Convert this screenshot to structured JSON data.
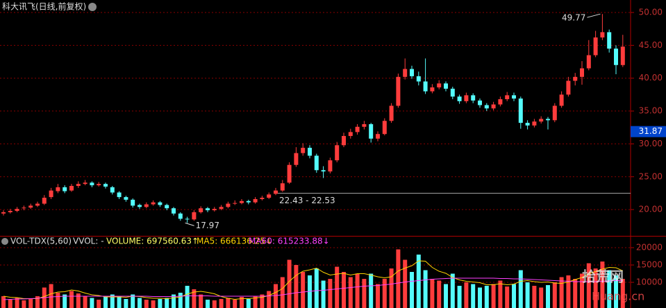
{
  "chart_data": [
    {
      "type": "candlestick",
      "title": "科大讯飞(日线,前复权)",
      "up_color": "#ff3c3c",
      "down_color": "#54fcfc",
      "grid": true,
      "ylim": [
        16.0,
        51.9
      ],
      "yticks": [
        {
          "value": 20,
          "label": "20.00"
        },
        {
          "value": 25,
          "label": "25.00"
        },
        {
          "value": 30,
          "label": "30.00"
        },
        {
          "value": 35,
          "label": "35.00"
        },
        {
          "value": 40,
          "label": "40.00"
        },
        {
          "value": 45,
          "label": "45.00"
        },
        {
          "value": 50,
          "label": "50.00"
        }
      ],
      "ohlc": [
        [
          19.4,
          19.9,
          19.1,
          19.6
        ],
        [
          19.6,
          20.1,
          19.4,
          19.8
        ],
        [
          19.8,
          20.4,
          19.6,
          20.1
        ],
        [
          20.2,
          20.6,
          19.9,
          20.3
        ],
        [
          20.3,
          20.9,
          20.1,
          20.6
        ],
        [
          20.6,
          21.2,
          20.4,
          20.9
        ],
        [
          20.9,
          22.2,
          20.7,
          21.8
        ],
        [
          21.9,
          23.3,
          21.6,
          22.9
        ],
        [
          22.8,
          23.9,
          22.5,
          23.4
        ],
        [
          23.4,
          23.7,
          22.5,
          22.8
        ],
        [
          22.9,
          23.9,
          22.7,
          23.6
        ],
        [
          23.6,
          24.3,
          23.3,
          23.9
        ],
        [
          23.9,
          24.5,
          23.7,
          24.1
        ],
        [
          24.1,
          24.3,
          23.4,
          23.7
        ],
        [
          23.7,
          24.2,
          23.5,
          23.9
        ],
        [
          23.9,
          24.1,
          23.2,
          23.5
        ],
        [
          23.4,
          23.6,
          22.3,
          22.6
        ],
        [
          22.6,
          22.8,
          21.6,
          21.9
        ],
        [
          21.9,
          22.1,
          21.2,
          21.5
        ],
        [
          21.5,
          21.7,
          20.3,
          20.6
        ],
        [
          20.7,
          20.9,
          20.1,
          20.4
        ],
        [
          20.4,
          21.1,
          20.2,
          20.8
        ],
        [
          20.8,
          21.4,
          20.6,
          21.1
        ],
        [
          21.1,
          21.3,
          20.4,
          20.7
        ],
        [
          20.7,
          20.9,
          19.9,
          20.2
        ],
        [
          20.2,
          20.4,
          19.1,
          19.4
        ],
        [
          19.4,
          19.6,
          18.3,
          18.6
        ],
        [
          18.6,
          18.9,
          17.97,
          18.5
        ],
        [
          18.5,
          19.9,
          18.3,
          19.6
        ],
        [
          19.6,
          20.5,
          19.4,
          20.2
        ],
        [
          20.2,
          20.4,
          19.6,
          19.9
        ],
        [
          19.9,
          20.4,
          19.7,
          20.1
        ],
        [
          20.1,
          20.7,
          19.9,
          20.4
        ],
        [
          20.4,
          21.2,
          20.2,
          20.9
        ],
        [
          20.9,
          21.4,
          20.7,
          21.0
        ],
        [
          21.0,
          21.6,
          20.8,
          21.3
        ],
        [
          21.3,
          21.5,
          20.8,
          21.1
        ],
        [
          21.1,
          21.9,
          20.9,
          21.6
        ],
        [
          21.6,
          22.1,
          21.4,
          21.8
        ],
        [
          21.8,
          22.6,
          21.6,
          22.3
        ],
        [
          22.4,
          23.3,
          22.2,
          22.9
        ],
        [
          22.9,
          24.5,
          22.7,
          24.0
        ],
        [
          24.1,
          27.2,
          23.9,
          26.8
        ],
        [
          26.8,
          29.5,
          26.5,
          28.6
        ],
        [
          28.6,
          30.1,
          28.2,
          29.4
        ],
        [
          29.4,
          29.8,
          27.8,
          28.2
        ],
        [
          28.2,
          28.5,
          25.6,
          26.0
        ],
        [
          26.0,
          26.6,
          24.8,
          25.8
        ],
        [
          25.8,
          27.9,
          25.5,
          27.5
        ],
        [
          27.5,
          30.3,
          27.2,
          29.8
        ],
        [
          29.8,
          31.7,
          29.5,
          31.2
        ],
        [
          31.2,
          32.3,
          30.8,
          31.8
        ],
        [
          31.8,
          33.0,
          31.4,
          32.6
        ],
        [
          32.6,
          33.5,
          32.2,
          33.0
        ],
        [
          33.0,
          33.2,
          30.2,
          30.8
        ],
        [
          30.8,
          31.9,
          30.4,
          31.5
        ],
        [
          31.5,
          33.9,
          31.3,
          33.5
        ],
        [
          33.5,
          36.2,
          33.2,
          35.8
        ],
        [
          35.8,
          40.7,
          35.5,
          40.2
        ],
        [
          40.2,
          43.0,
          39.8,
          41.4
        ],
        [
          41.4,
          41.9,
          39.9,
          40.3
        ],
        [
          40.3,
          41.0,
          38.9,
          39.5
        ],
        [
          39.5,
          43.0,
          37.6,
          38.0
        ],
        [
          38.0,
          39.1,
          37.7,
          38.6
        ],
        [
          38.6,
          39.7,
          38.3,
          39.2
        ],
        [
          39.2,
          39.5,
          38.0,
          38.4
        ],
        [
          38.4,
          38.7,
          36.8,
          37.2
        ],
        [
          37.2,
          37.5,
          36.1,
          36.5
        ],
        [
          36.5,
          37.8,
          36.2,
          37.4
        ],
        [
          37.4,
          37.7,
          36.2,
          36.6
        ],
        [
          36.6,
          36.9,
          35.5,
          35.9
        ],
        [
          35.9,
          36.2,
          35.0,
          35.4
        ],
        [
          35.4,
          36.4,
          35.1,
          36.0
        ],
        [
          36.0,
          37.2,
          35.7,
          36.8
        ],
        [
          36.8,
          37.9,
          36.5,
          37.4
        ],
        [
          37.4,
          37.8,
          36.5,
          36.9
        ],
        [
          36.9,
          37.2,
          32.3,
          33.2
        ],
        [
          33.2,
          33.6,
          32.2,
          32.8
        ],
        [
          32.8,
          33.8,
          32.5,
          33.4
        ],
        [
          33.4,
          34.2,
          33.1,
          33.8
        ],
        [
          33.8,
          34.1,
          32.2,
          33.6
        ],
        [
          33.6,
          36.2,
          33.3,
          35.8
        ],
        [
          35.8,
          38.0,
          35.5,
          37.5
        ],
        [
          37.5,
          40.2,
          37.2,
          39.6
        ],
        [
          39.6,
          40.8,
          38.9,
          40.2
        ],
        [
          40.2,
          42.6,
          39.0,
          41.5
        ],
        [
          41.5,
          45.8,
          41.2,
          43.5
        ],
        [
          43.5,
          47.2,
          43.2,
          46.2
        ],
        [
          46.2,
          49.77,
          45.8,
          47.0
        ],
        [
          47.0,
          47.4,
          43.9,
          44.5
        ],
        [
          44.5,
          45.0,
          40.6,
          42.0
        ],
        [
          42.0,
          46.6,
          41.7,
          44.8
        ]
      ],
      "high_mark": {
        "index": 88,
        "value": 49.77
      },
      "low_mark": {
        "index": 27,
        "value": 17.97
      },
      "range_mark": {
        "label": "22.43 - 22.53",
        "low": 22.43,
        "high": 22.53
      },
      "price_label": 31.87
    },
    {
      "type": "volume",
      "title": "VOL-TDX(5,60)",
      "subtitle": "VVOL: -",
      "grid": true,
      "ylim": [
        2600,
        21000
      ],
      "yticks": [
        10000,
        15000,
        20000
      ],
      "series": [
        {
          "name": "VOLUME: 697560.63↑",
          "color": "#ffff66",
          "values": [
            6000,
            5000,
            5500,
            4800,
            5200,
            6000,
            8500,
            9500,
            7000,
            6500,
            7500,
            6800,
            6000,
            5500,
            5000,
            5800,
            6500,
            6000,
            5200,
            6500,
            5500,
            5000,
            4800,
            5200,
            5500,
            6500,
            7000,
            9000,
            8000,
            6500,
            5000,
            4800,
            5200,
            5500,
            5000,
            5800,
            5200,
            6000,
            6500,
            7500,
            9500,
            11500,
            16500,
            15000,
            13000,
            12000,
            14000,
            10500,
            11000,
            14500,
            13000,
            11500,
            12500,
            11000,
            12500,
            9500,
            11000,
            14000,
            19500,
            16500,
            13000,
            18000,
            13500,
            11000,
            10500,
            9500,
            12500,
            9000,
            10000,
            9500,
            8500,
            9000,
            9500,
            10500,
            8800,
            9500,
            13500,
            10000,
            9000,
            8500,
            9200,
            10000,
            11500,
            12000,
            11000,
            12500,
            15500,
            14000,
            16000,
            13500,
            12000,
            11000
          ]
        },
        {
          "name": "MA5: 666136.25↓",
          "color": "#ffd400",
          "values": [
            6000,
            5700,
            5600,
            5300,
            5300,
            5300,
            5900,
            6700,
            7200,
            7300,
            7800,
            7500,
            6900,
            6400,
            6200,
            5800,
            5800,
            5800,
            5700,
            6000,
            5900,
            5600,
            5400,
            5400,
            5300,
            5500,
            5800,
            6600,
            7200,
            7400,
            7100,
            6700,
            5900,
            5400,
            5100,
            5300,
            5300,
            5500,
            5700,
            6200,
            7100,
            8200,
            10300,
            12000,
            13200,
            13600,
            14100,
            12900,
            12100,
            12400,
            12600,
            12100,
            12500,
            12500,
            12100,
            11600,
            11300,
            11600,
            13300,
            14100,
            14800,
            16200,
            16100,
            14300,
            13200,
            12600,
            11400,
            10700,
            10300,
            10100,
            9900,
            9300,
            9300,
            9600,
            9300,
            9500,
            10300,
            10500,
            10200,
            10000,
            10100,
            9800,
            9700,
            10100,
            10800,
            11400,
            12500,
            13100,
            13800,
            14300,
            14200,
            13300
          ]
        },
        {
          "name": "MA60: 615233.88↓",
          "color": "#ff40ff",
          "values": [
            5000,
            5100,
            5200,
            5200,
            5300,
            5400,
            5600,
            5800,
            5900,
            6000,
            6000,
            6000,
            6000,
            6000,
            6000,
            6000,
            6000,
            6000,
            6000,
            6000,
            6000,
            6000,
            5900,
            5900,
            5900,
            5900,
            6000,
            6100,
            6100,
            6100,
            6100,
            6000,
            6000,
            6000,
            6000,
            6000,
            6000,
            6000,
            6000,
            6100,
            6200,
            6400,
            6700,
            7000,
            7200,
            7400,
            7600,
            7700,
            7900,
            8100,
            8300,
            8500,
            8700,
            8900,
            9000,
            9100,
            9300,
            9500,
            9800,
            10100,
            10300,
            10500,
            10700,
            10900,
            11000,
            11100,
            11200,
            11200,
            11200,
            11200,
            11200,
            11200,
            11200,
            11100,
            11100,
            11000,
            11000,
            10900,
            10800,
            10700,
            10600,
            10500,
            10400,
            10300,
            10200,
            10200,
            10200,
            10200,
            10300,
            10400,
            10500,
            10500
          ]
        }
      ]
    }
  ],
  "watermark": [
    "拾荒网",
    "Huang.cn"
  ]
}
